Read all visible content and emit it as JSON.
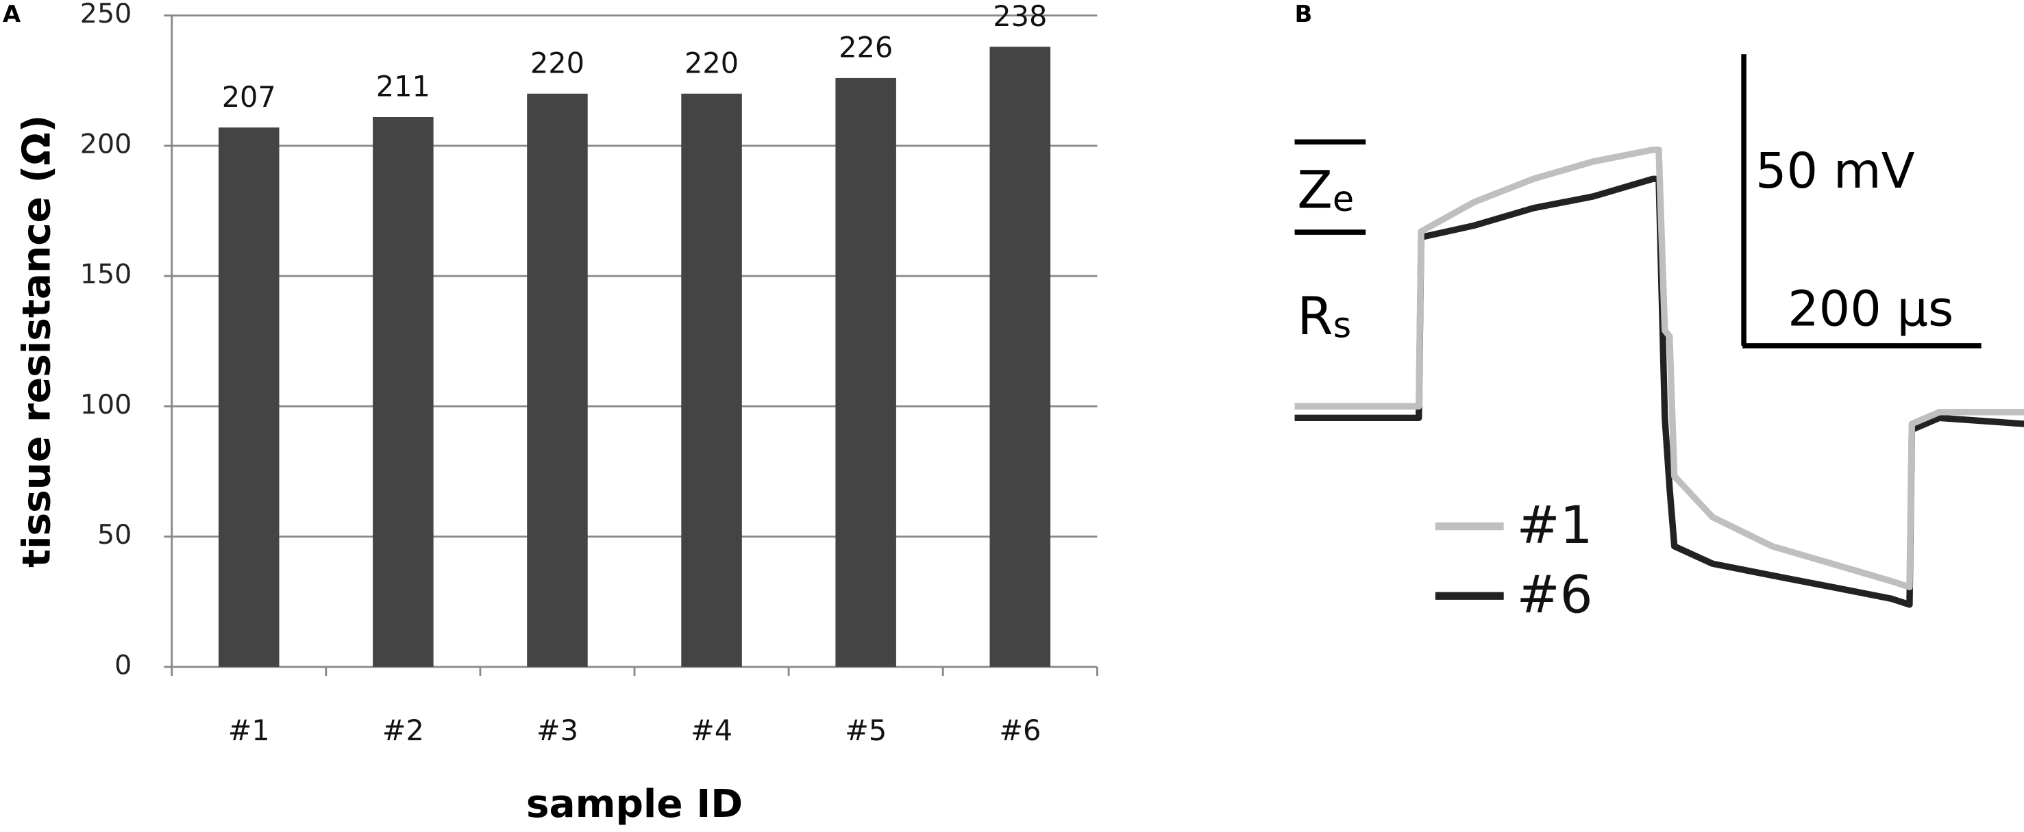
{
  "chart_data": [
    {
      "type": "bar",
      "panel_label": "A",
      "x_label": "sample ID",
      "y_label": "tissue resistance (Ω)",
      "categories": [
        "#1",
        "#2",
        "#3",
        "#4",
        "#5",
        "#6"
      ],
      "values": [
        207,
        211,
        220,
        220,
        226,
        238
      ],
      "color": "#444444",
      "ylim": [
        0,
        250
      ],
      "yticks": [
        0,
        50,
        100,
        150,
        200,
        250
      ],
      "grid": true
    },
    {
      "type": "line",
      "panel_label": "B",
      "annotations": [
        {
          "main": "Z",
          "sub": "e"
        },
        {
          "main": "R",
          "sub": "s"
        }
      ],
      "scale_bars": [
        {
          "value": 50,
          "label": "50 mV"
        },
        {
          "value": 200,
          "label": "200 µs"
        }
      ],
      "x": [
        0,
        104,
        106,
        150,
        200,
        250,
        300,
        305,
        310,
        314,
        318,
        350,
        400,
        450,
        500,
        515,
        517,
        540,
        611
      ],
      "series": [
        {
          "name": "#1",
          "color": "#bfbfbf",
          "values": [
            0,
            0,
            30,
            35,
            39,
            42,
            44,
            44,
            13,
            12,
            -12,
            -19,
            -24,
            -27,
            -30,
            -31,
            -3,
            -1,
            -1
          ]
        },
        {
          "name": "#6",
          "color": "#222222",
          "values": [
            -2,
            -2,
            29,
            31,
            34,
            36,
            39,
            39,
            -2,
            -14,
            -24,
            -27,
            -29,
            -31,
            -33,
            -34,
            -4,
            -2,
            -3
          ]
        }
      ]
    }
  ]
}
